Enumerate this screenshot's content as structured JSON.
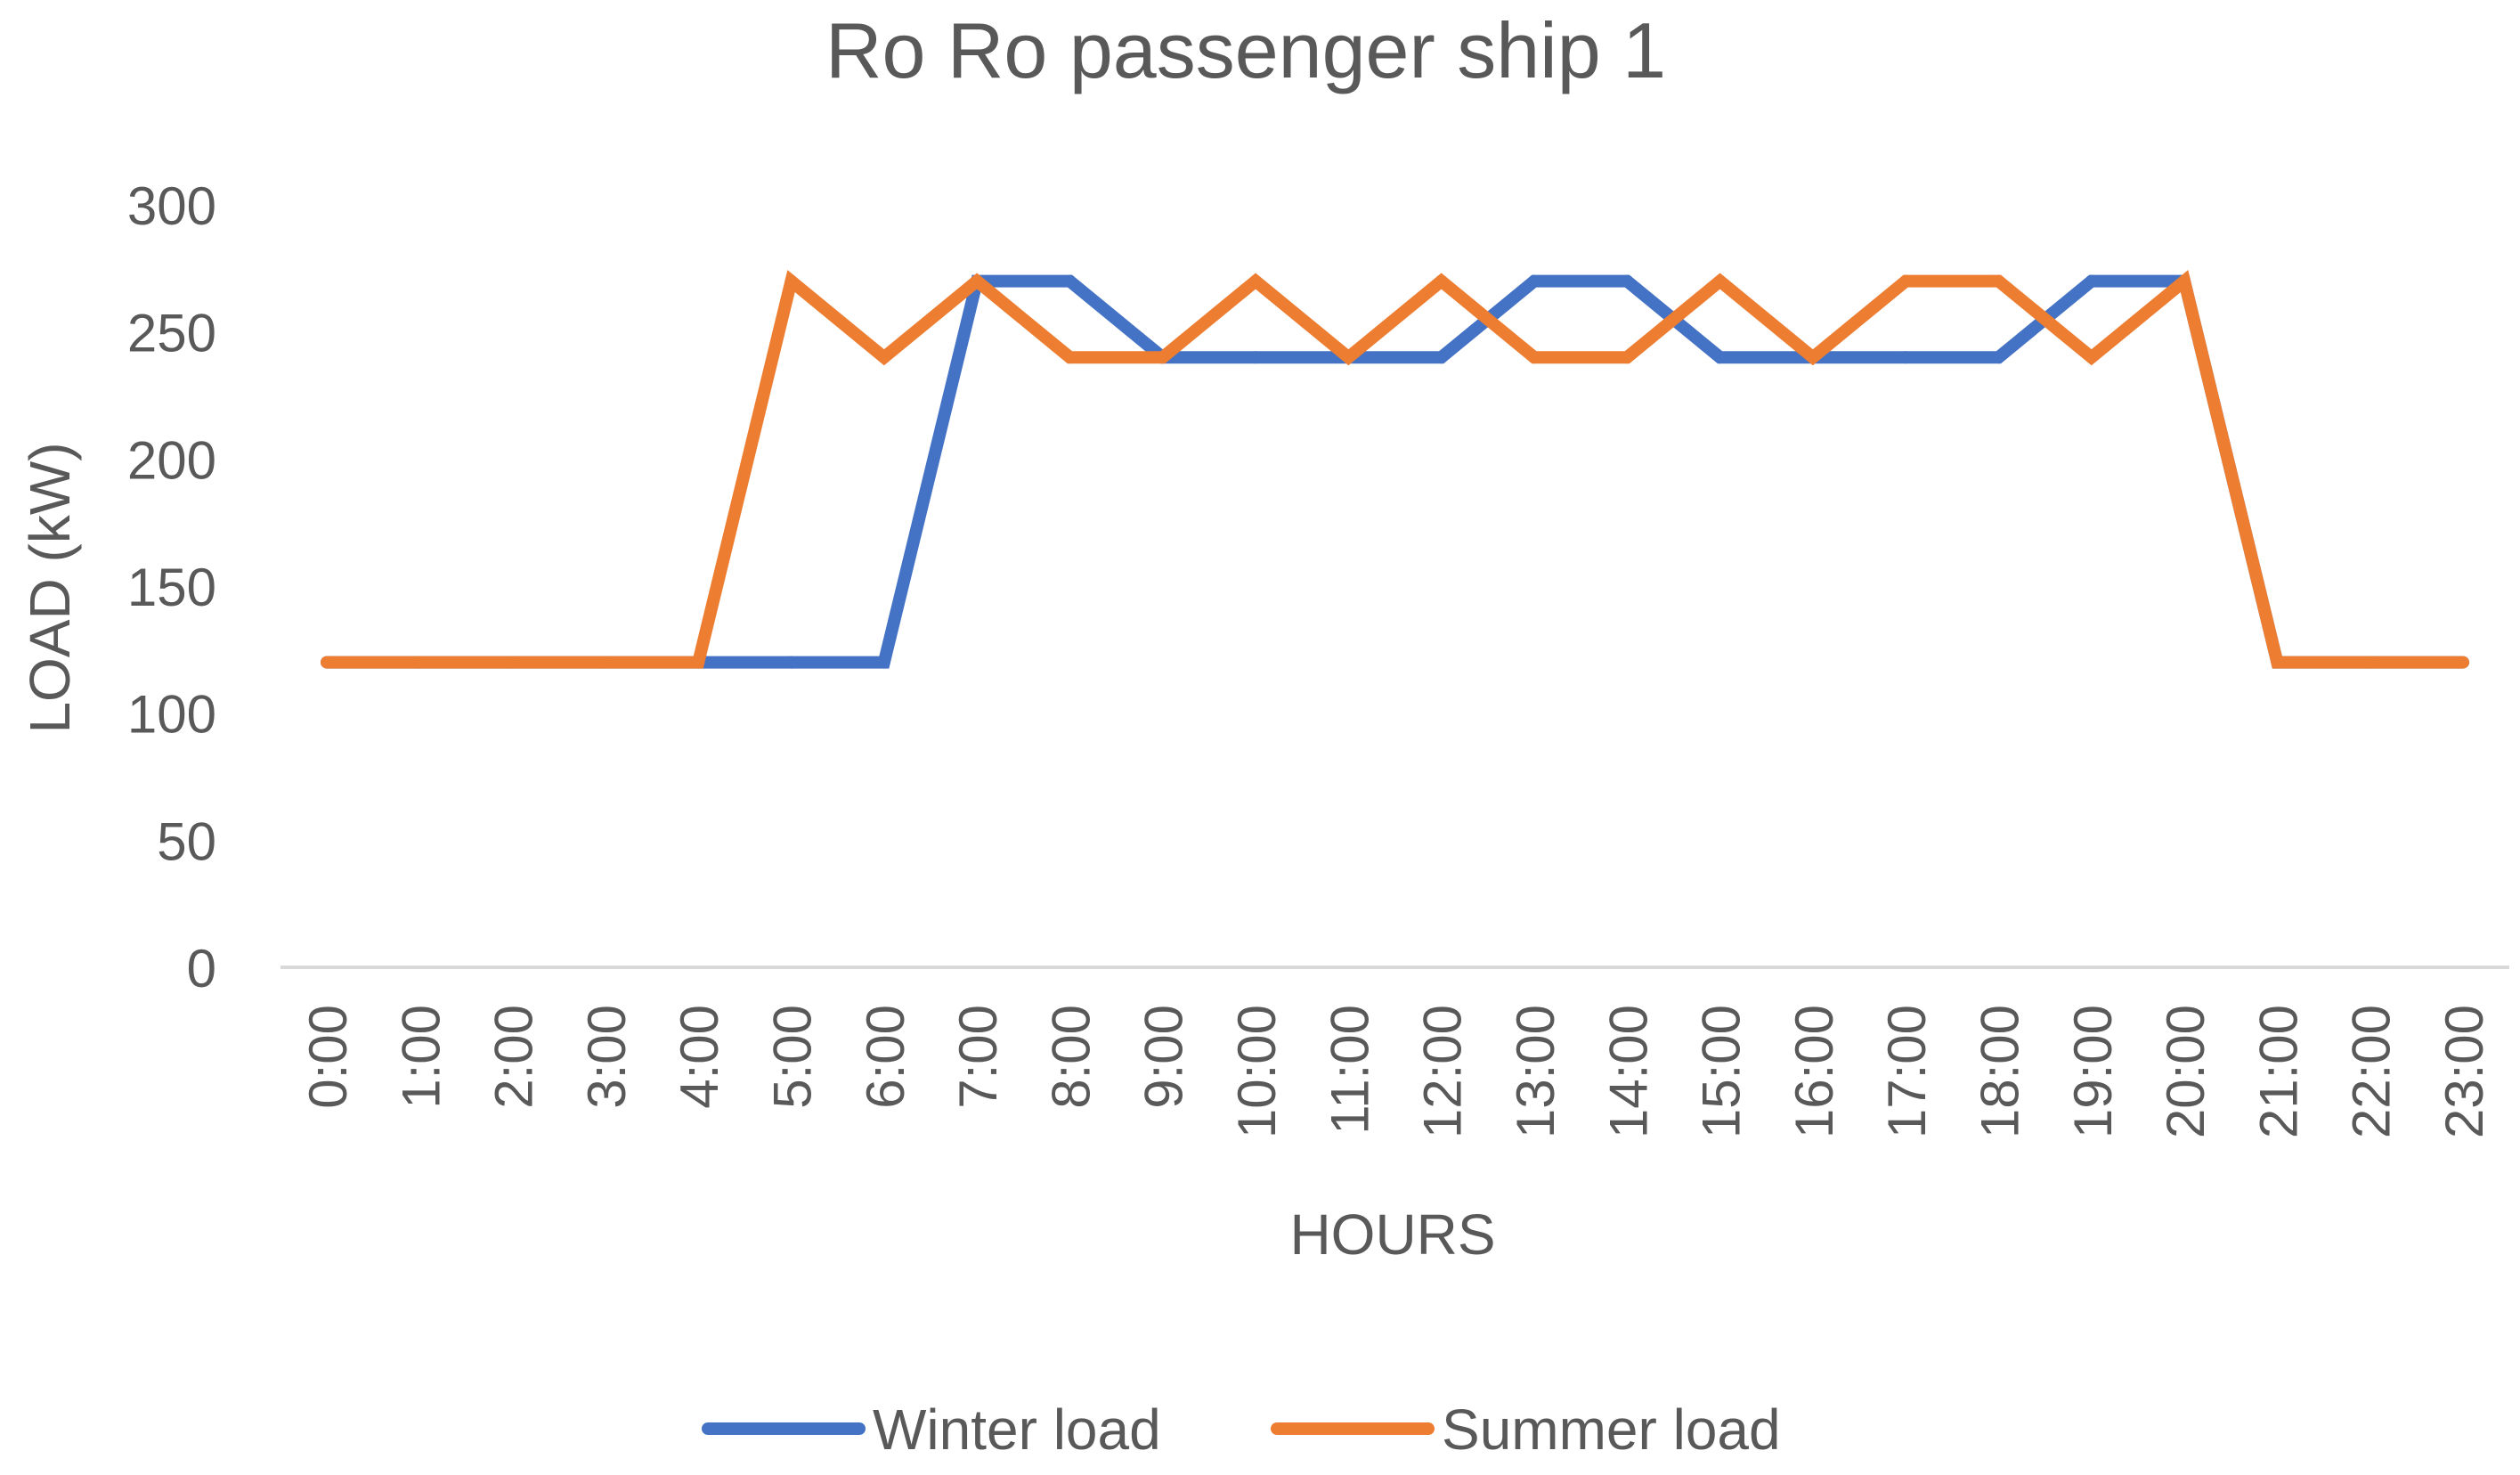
{
  "chart_data": {
    "type": "line",
    "title": "Ro Ro passenger ship 1",
    "xlabel": "HOURS",
    "ylabel": "LOAD (kW)",
    "ylim": [
      0,
      300
    ],
    "yticks": [
      0,
      50,
      100,
      150,
      200,
      250,
      300
    ],
    "grid": false,
    "legend_position": "bottom",
    "categories": [
      "0:00",
      "1:00",
      "2:00",
      "3:00",
      "4:00",
      "5:00",
      "6:00",
      "7:00",
      "8:00",
      "9:00",
      "10:00",
      "11:00",
      "12:00",
      "13:00",
      "14:00",
      "15:00",
      "16:00",
      "17:00",
      "18:00",
      "19:00",
      "20:00",
      "21:00",
      "22:00",
      "23:00"
    ],
    "series": [
      {
        "name": "Winter load",
        "color": "#4472C4",
        "values": [
          120,
          120,
          120,
          120,
          120,
          120,
          120,
          270,
          270,
          240,
          240,
          240,
          240,
          270,
          270,
          240,
          240,
          240,
          240,
          270,
          270,
          120,
          120,
          120
        ]
      },
      {
        "name": "Summer load",
        "color": "#ED7D31",
        "values": [
          120,
          120,
          120,
          120,
          120,
          270,
          240,
          270,
          240,
          240,
          270,
          240,
          270,
          240,
          240,
          270,
          240,
          270,
          270,
          240,
          270,
          120,
          120,
          120
        ]
      }
    ]
  }
}
